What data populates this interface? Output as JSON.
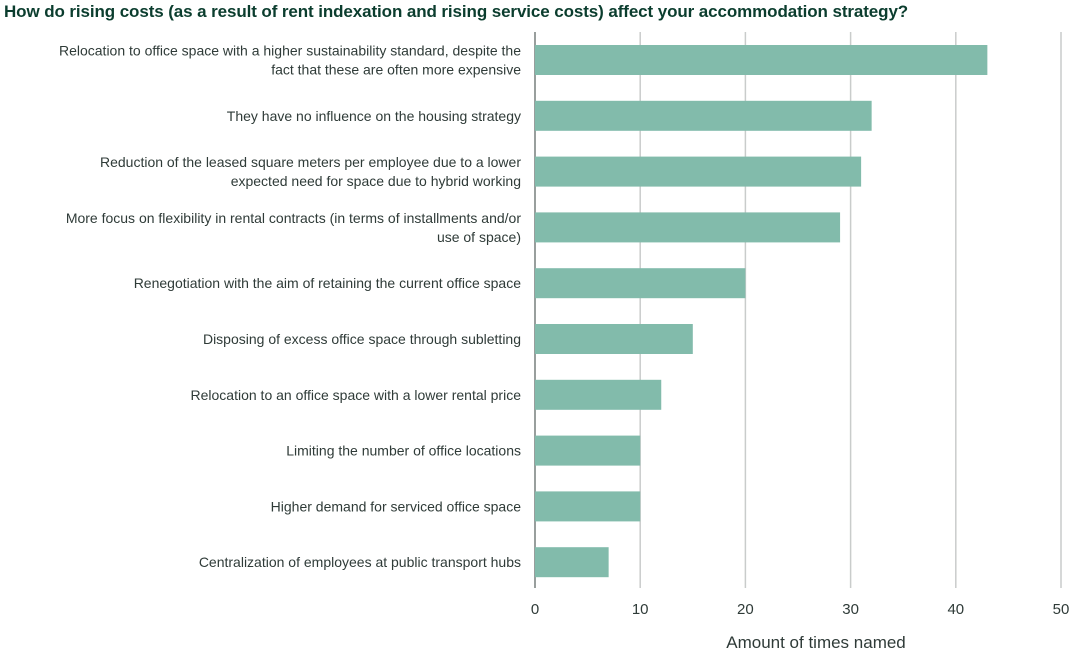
{
  "chart_data": {
    "type": "bar",
    "orientation": "horizontal",
    "title": "How do rising costs (as a result of rent indexation and rising service costs) affect your accommodation strategy?",
    "xlabel": "Amount of times named",
    "ylabel": "",
    "xlim": [
      0,
      50
    ],
    "xticks": [
      "0",
      "10",
      "20",
      "30",
      "40",
      "50"
    ],
    "grid": true,
    "bar_color": "#82bbab",
    "categories": [
      [
        "Relocation to office space with a higher sustainability standard, despite the",
        "fact that these are often more expensive"
      ],
      [
        "They have no influence on the housing strategy"
      ],
      [
        "Reduction of the leased square meters per employee due to a lower",
        "expected need for space due to hybrid working"
      ],
      [
        "More focus on flexibility in rental contracts (in terms of installments and/or",
        "use of space)"
      ],
      [
        "Renegotiation with the aim of retaining the current office space"
      ],
      [
        "Disposing of excess office space through subletting"
      ],
      [
        "Relocation to an office space with a lower rental price"
      ],
      [
        "Limiting the number of office locations"
      ],
      [
        "Higher demand for serviced office space"
      ],
      [
        "Centralization of employees at public transport hubs"
      ]
    ],
    "values": [
      43,
      32,
      31,
      29,
      20,
      15,
      12,
      10,
      10,
      7
    ]
  }
}
